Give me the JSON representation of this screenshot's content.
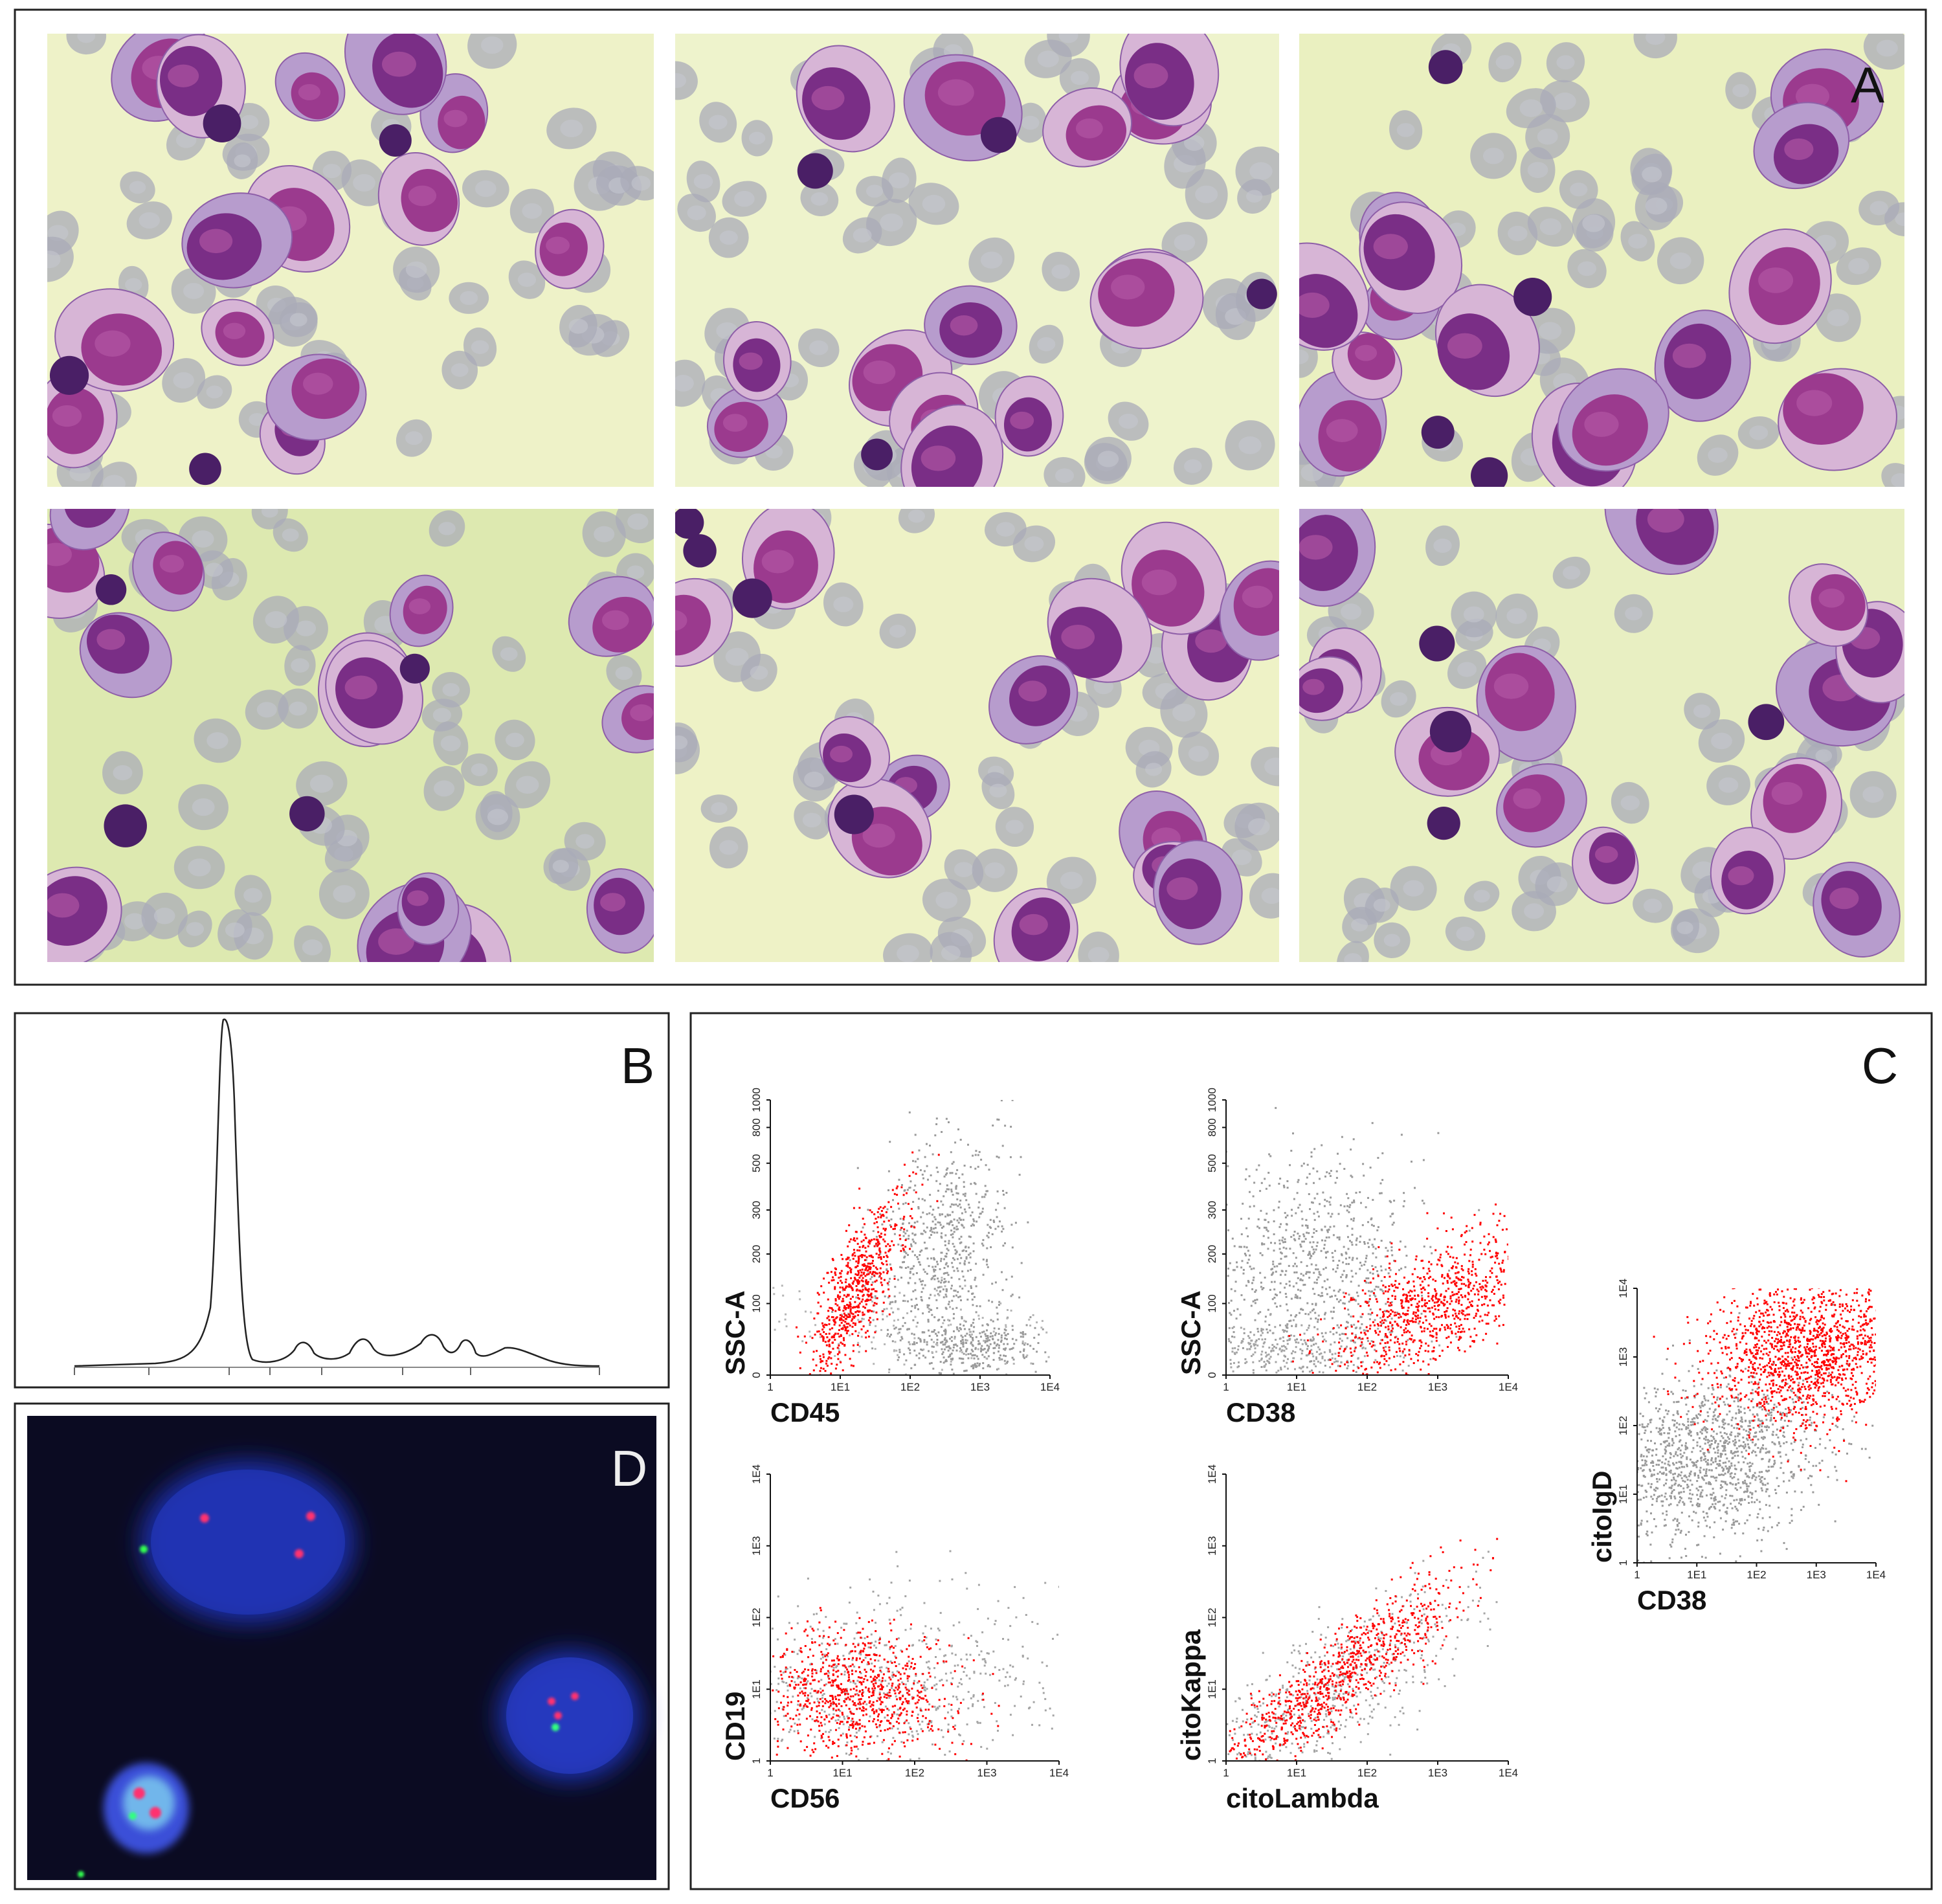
{
  "panel_labels": {
    "a": "A",
    "b": "B",
    "c": "C",
    "d": "D"
  },
  "flow_plots": [
    {
      "y_label": "SSC-A",
      "x_label": "CD45",
      "y_ticks": [
        "0",
        "100",
        "200",
        "300",
        "500",
        "800",
        "1000"
      ],
      "x_ticks": [
        "1",
        "1E1",
        "1E2",
        "1E3",
        "1E4"
      ]
    },
    {
      "y_label": "SSC-A",
      "x_label": "CD38",
      "y_ticks": [
        "0",
        "100",
        "200",
        "300",
        "500",
        "800",
        "1000"
      ],
      "x_ticks": [
        "1",
        "1E1",
        "1E2",
        "1E3",
        "1E4"
      ]
    },
    {
      "y_label": "CD19",
      "x_label": "CD56",
      "y_ticks": [
        "1",
        "1E1",
        "1E2",
        "1E3",
        "1E4"
      ],
      "x_ticks": [
        "1",
        "1E1",
        "1E2",
        "1E3",
        "1E4"
      ]
    },
    {
      "y_label": "citoKappa",
      "x_label": "citoLambda",
      "y_ticks": [
        "1",
        "1E1",
        "1E2",
        "1E3",
        "1E4"
      ],
      "x_ticks": [
        "1",
        "1E1",
        "1E2",
        "1E3",
        "1E4"
      ]
    },
    {
      "y_label": "citoIgD",
      "x_label": "CD38",
      "y_ticks": [
        "1",
        "1E1",
        "1E2",
        "1E3",
        "1E4"
      ],
      "x_ticks": [
        "1",
        "1E1",
        "1E2",
        "1E3",
        "1E4"
      ]
    }
  ]
}
